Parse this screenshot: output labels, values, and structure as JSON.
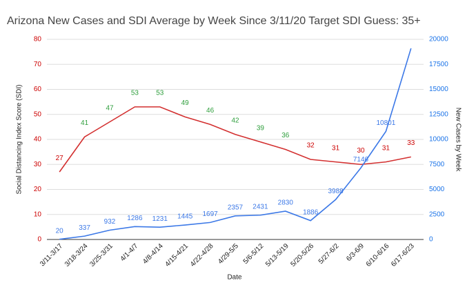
{
  "chart_data": {
    "type": "line",
    "title": "Arizona New Cases and SDI Average by Week Since 3/11/20 Target SDI Guess: 35+",
    "x_label": "Date",
    "y_label": "Social Distancing Index Score (SDI)",
    "y2_label": "New Cases by Week",
    "categories": [
      "3/11-3/17",
      "3/18-3/24",
      "3/25-3/31",
      "4/1-4/7",
      "4/8-4/14",
      "4/15-4/21",
      "4/22-4/28",
      "4/29-5/5",
      "5/6-5/12",
      "5/13-5/19",
      "5/20-5/26",
      "5/27-6/2",
      "6/3-6/9",
      "6/10-6/16",
      "6/17-6/23"
    ],
    "ylim": [
      0,
      80
    ],
    "yticks": [
      0,
      10,
      20,
      30,
      40,
      50,
      60,
      70,
      80
    ],
    "ytick_color": "#cc0000",
    "y2lim": [
      0,
      20000
    ],
    "y2ticks": [
      0,
      2500,
      5000,
      7500,
      10000,
      12500,
      15000,
      17500,
      20000
    ],
    "y2tick_color": "#1a73e8",
    "grid": true,
    "series": [
      {
        "name": "SDI Average",
        "color": "#d32f2f",
        "values": [
          27,
          41,
          47,
          53,
          53,
          49,
          46,
          42,
          39,
          36,
          32,
          31,
          30,
          31,
          33
        ],
        "label_colors": [
          "#cc0000",
          "#2e9e3c",
          "#2e9e3c",
          "#2e9e3c",
          "#2e9e3c",
          "#2e9e3c",
          "#2e9e3c",
          "#2e9e3c",
          "#2e9e3c",
          "#2e9e3c",
          "#cc0000",
          "#cc0000",
          "#cc0000",
          "#cc0000",
          "#cc0000"
        ]
      },
      {
        "name": "New Cases",
        "color": "#3b78e7",
        "axis": "y2",
        "values": [
          20,
          337,
          932,
          1286,
          1231,
          1445,
          1697,
          2357,
          2431,
          2830,
          1886,
          3988,
          7146,
          10801,
          19100
        ],
        "value_labels": [
          "20",
          "337",
          "932",
          "1286",
          "1231",
          "1445",
          "1697",
          "2357",
          "2431",
          "2830",
          "1886",
          "3988",
          "7146",
          "10801",
          null
        ]
      }
    ]
  }
}
